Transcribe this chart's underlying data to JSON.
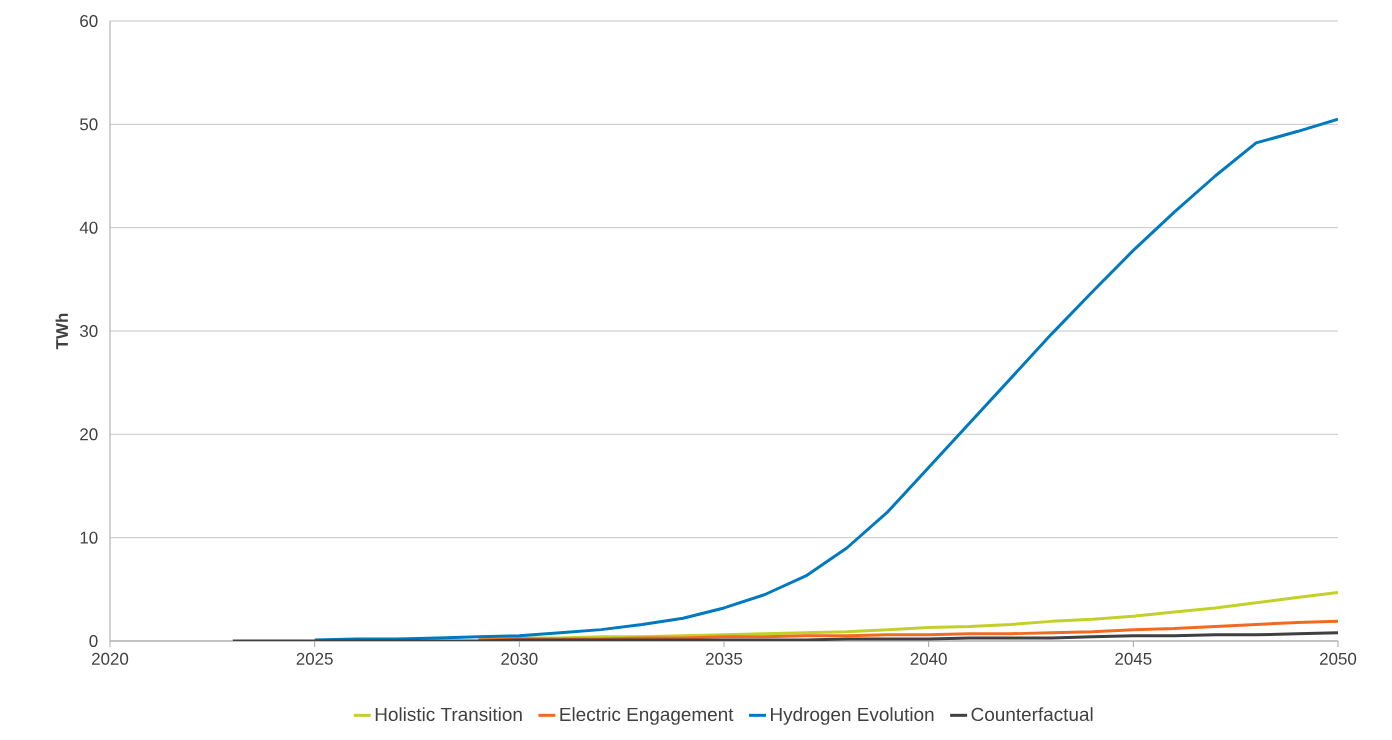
{
  "chart_data": {
    "type": "line",
    "ylabel": "TWh",
    "x": [
      2023,
      2024,
      2025,
      2026,
      2027,
      2028,
      2029,
      2030,
      2031,
      2032,
      2033,
      2034,
      2035,
      2036,
      2037,
      2038,
      2039,
      2040,
      2041,
      2042,
      2043,
      2044,
      2045,
      2046,
      2047,
      2048,
      2049,
      2050
    ],
    "series": [
      {
        "name": "Holistic Transition",
        "color": "#c3d02a",
        "values": [
          null,
          null,
          null,
          null,
          null,
          null,
          0.2,
          0.3,
          0.3,
          0.4,
          0.4,
          0.5,
          0.6,
          0.7,
          0.8,
          0.9,
          1.1,
          1.3,
          1.4,
          1.6,
          1.9,
          2.1,
          2.4,
          2.8,
          3.2,
          3.7,
          4.2,
          4.7
        ]
      },
      {
        "name": "Electric Engagement",
        "color": "#f26a22",
        "values": [
          null,
          null,
          null,
          null,
          null,
          null,
          0.1,
          0.2,
          0.2,
          0.2,
          0.3,
          0.3,
          0.4,
          0.4,
          0.5,
          0.5,
          0.6,
          0.6,
          0.7,
          0.7,
          0.8,
          0.9,
          1.1,
          1.2,
          1.4,
          1.6,
          1.8,
          1.9
        ]
      },
      {
        "name": "Hydrogen Evolution",
        "color": "#0079c1",
        "values": [
          null,
          null,
          0.1,
          0.2,
          0.2,
          0.3,
          0.4,
          0.5,
          0.8,
          1.1,
          1.6,
          2.2,
          3.2,
          4.5,
          6.3,
          9.0,
          12.5,
          16.8,
          21.1,
          25.4,
          29.7,
          33.8,
          37.8,
          41.5,
          45.0,
          48.2,
          49.3,
          50.5
        ]
      },
      {
        "name": "Counterfactual",
        "color": "#404040",
        "values": [
          0,
          0,
          0,
          0,
          0,
          0,
          0,
          0.1,
          0.1,
          0.1,
          0.1,
          0.1,
          0.1,
          0.1,
          0.1,
          0.2,
          0.2,
          0.2,
          0.3,
          0.3,
          0.3,
          0.4,
          0.5,
          0.5,
          0.6,
          0.6,
          0.7,
          0.8
        ]
      }
    ],
    "xlim": [
      2020,
      2050
    ],
    "xticks": [
      2020,
      2025,
      2030,
      2035,
      2040,
      2045,
      2050
    ],
    "ylim": [
      0,
      60
    ],
    "yticks": [
      0,
      10,
      20,
      30,
      40,
      50,
      60
    ],
    "grid": "y",
    "legend": "bottom",
    "marker": "none",
    "line_style": "solid"
  }
}
